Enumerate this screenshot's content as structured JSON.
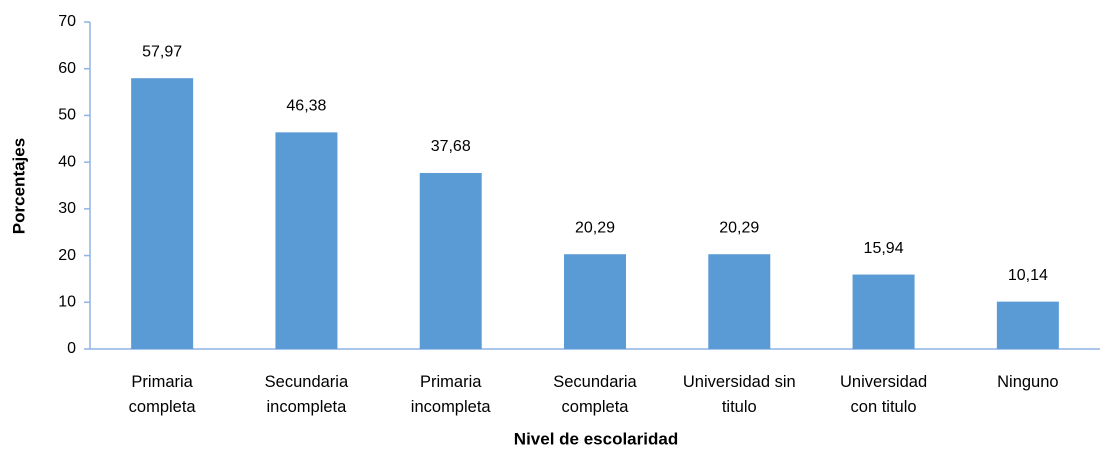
{
  "chart_data": {
    "type": "bar",
    "x_label": "Nivel de escolaridad",
    "y_label": "Porcentajes",
    "categories": [
      "Primaria completa",
      "Secundaria incompleta",
      "Primaria incompleta",
      "Secundaria completa",
      "Universidad sin titulo",
      "Universidad con titulo",
      "Ninguno"
    ],
    "values": [
      57.97,
      46.38,
      37.68,
      20.29,
      20.29,
      15.94,
      10.14
    ],
    "value_labels": [
      "57,97",
      "46,38",
      "37,68",
      "20,29",
      "20,29",
      "15,94",
      "10,14"
    ],
    "color": "#5b9bd5",
    "ylim": [
      0,
      70
    ],
    "yticks": [
      0,
      10,
      20,
      30,
      40,
      50,
      60,
      70
    ],
    "grid": false
  }
}
